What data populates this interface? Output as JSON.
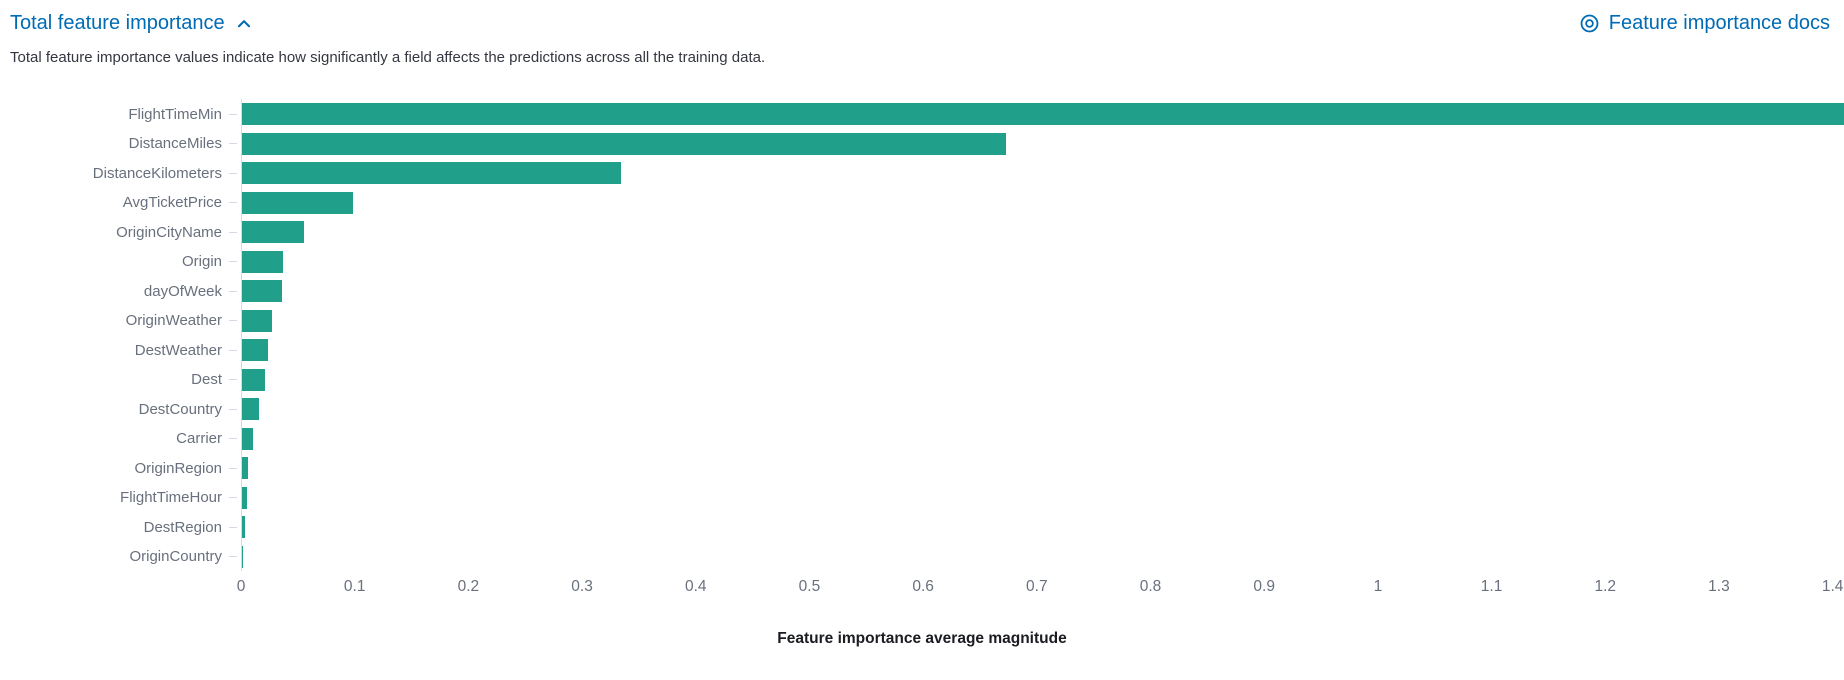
{
  "header": {
    "title": "Total feature importance",
    "collapse_icon": "chevron-up-icon",
    "docs_icon": "docs-ring-icon",
    "docs_link_label": "Feature importance docs"
  },
  "description": "Total feature importance values indicate how significantly a field affects the predictions across all the training data.",
  "colors": {
    "link": "#006BB4",
    "bar": "#20A08A",
    "category_label": "#69707D",
    "tick_label": "#69707D",
    "axis_line": "#D3DAE6",
    "description_text": "#343741",
    "axis_title": "#1A1C21"
  },
  "chart_data": {
    "type": "bar",
    "orientation": "horizontal",
    "title": "",
    "xlabel": "Feature importance average magnitude",
    "ylabel": "",
    "xlim": [
      0,
      1.41
    ],
    "grid": false,
    "legend": "none",
    "categories": [
      "FlightTimeMin",
      "DistanceMiles",
      "DistanceKilometers",
      "AvgTicketPrice",
      "OriginCityName",
      "Origin",
      "dayOfWeek",
      "OriginWeather",
      "DestWeather",
      "Dest",
      "DestCountry",
      "Carrier",
      "OriginRegion",
      "FlightTimeHour",
      "DestRegion",
      "OriginCountry"
    ],
    "values": [
      1.41,
      0.672,
      0.334,
      0.098,
      0.055,
      0.036,
      0.035,
      0.026,
      0.023,
      0.02,
      0.015,
      0.01,
      0.005,
      0.004,
      0.003,
      0.001
    ],
    "xticks": [
      {
        "value": 0,
        "label": "0"
      },
      {
        "value": 0.1,
        "label": "0.1"
      },
      {
        "value": 0.2,
        "label": "0.2"
      },
      {
        "value": 0.3,
        "label": "0.3"
      },
      {
        "value": 0.4,
        "label": "0.4"
      },
      {
        "value": 0.5,
        "label": "0.5"
      },
      {
        "value": 0.6,
        "label": "0.6"
      },
      {
        "value": 0.7,
        "label": "0.7"
      },
      {
        "value": 0.8,
        "label": "0.8"
      },
      {
        "value": 0.9,
        "label": "0.9"
      },
      {
        "value": 1,
        "label": "1"
      },
      {
        "value": 1.1,
        "label": "1.1"
      },
      {
        "value": 1.2,
        "label": "1.2"
      },
      {
        "value": 1.3,
        "label": "1.3"
      },
      {
        "value": 1.4,
        "label": "1.4"
      }
    ]
  }
}
